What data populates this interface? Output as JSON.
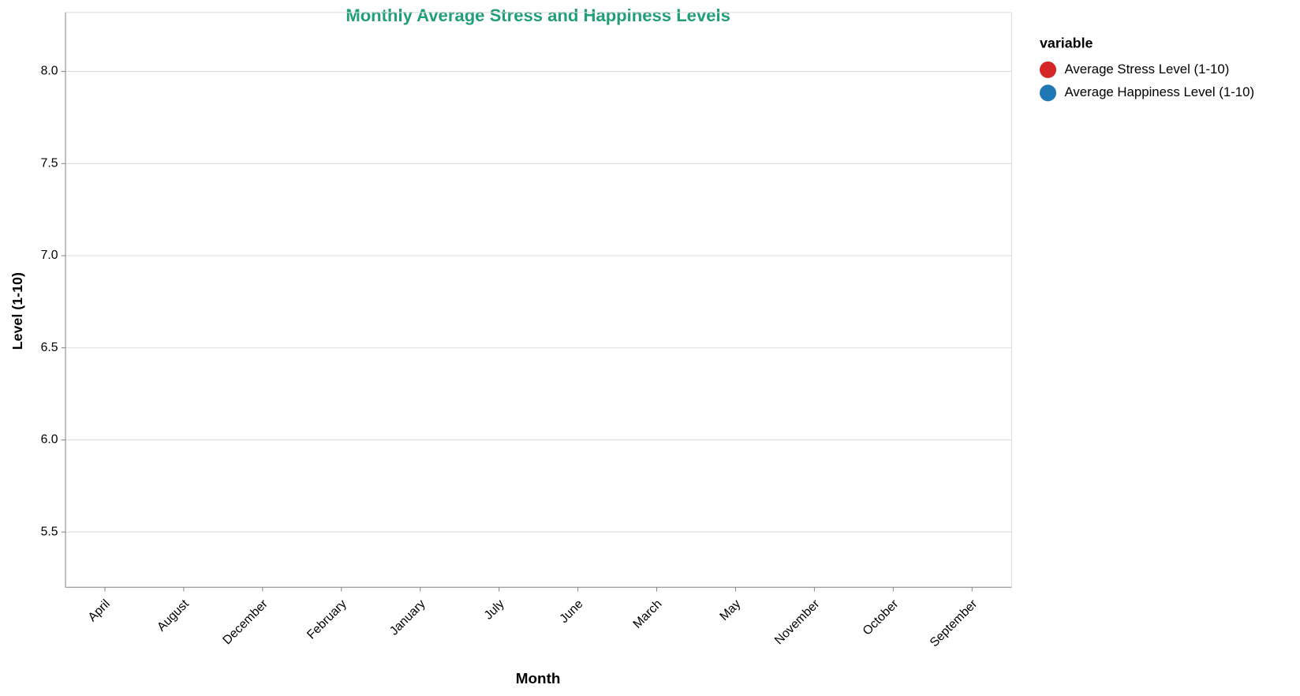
{
  "chart_data": {
    "type": "line",
    "title": "Monthly Average Stress and Happiness Levels",
    "x_label": "Month",
    "y_label": "Level (1-10)",
    "legend_title": "variable",
    "legend_position": "right",
    "grid": true,
    "categories": [
      "April",
      "August",
      "December",
      "February",
      "January",
      "July",
      "June",
      "March",
      "May",
      "November",
      "October",
      "September"
    ],
    "series": [
      {
        "name": "Average Stress Level (1-10)",
        "color": "#d62728",
        "values": [
          null,
          null,
          null,
          null,
          null,
          null,
          null,
          null,
          null,
          null,
          null,
          null
        ]
      },
      {
        "name": "Average Happiness Level (1-10)",
        "color": "#1f77b4",
        "values": [
          null,
          null,
          null,
          null,
          null,
          null,
          null,
          null,
          null,
          null,
          null,
          null
        ]
      }
    ],
    "ylim": [
      5.2,
      8.32
    ],
    "yticks": [
      {
        "value": 5.5,
        "label": "5.5"
      },
      {
        "value": 6,
        "label": "6.0"
      },
      {
        "value": 6.5,
        "label": "6.5"
      },
      {
        "value": 7,
        "label": "7.0"
      },
      {
        "value": 7.5,
        "label": "7.5"
      },
      {
        "value": 8,
        "label": "8.0"
      }
    ]
  }
}
